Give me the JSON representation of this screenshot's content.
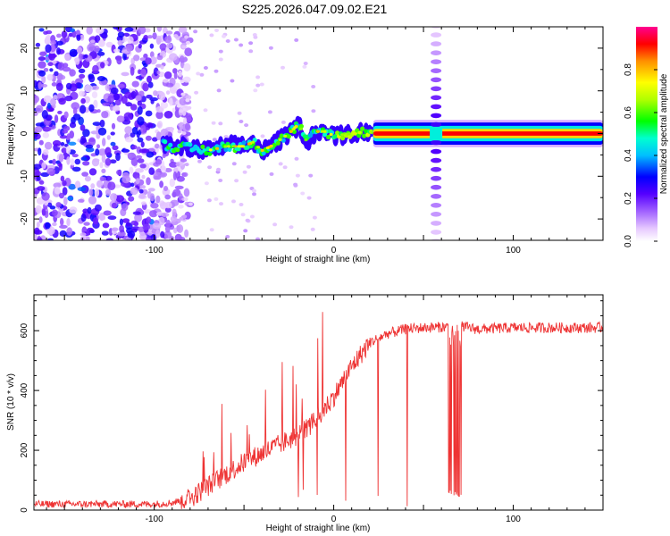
{
  "title": "S225.2026.047.09.02.E21",
  "chart_data": [
    {
      "type": "heatmap",
      "name": "spectrogram",
      "xlabel": "Height of straight line (km)",
      "ylabel": "Frequency (Hz)",
      "xlim": [
        -167,
        150
      ],
      "ylim": [
        -25,
        25
      ],
      "xticks": [
        -100,
        0,
        100
      ],
      "yticks": [
        -20,
        -10,
        0,
        10,
        20
      ],
      "colorbar": {
        "label": "Normalized spectral amplitude",
        "range": [
          0.0,
          1.0
        ],
        "ticks": [
          0.0,
          0.2,
          0.4,
          0.6,
          0.8
        ]
      },
      "ridge": {
        "description_points_x": [
          -95,
          -90,
          -80,
          -70,
          -60,
          -50,
          -45,
          -40,
          -35,
          -30,
          -25,
          -20,
          -18,
          -15,
          -10,
          -5,
          0,
          10,
          20,
          30,
          55,
          150
        ],
        "description_points_y": [
          -2.5,
          -3,
          -3.5,
          -4,
          -3,
          -3,
          -2,
          -4,
          -3,
          -1.5,
          0,
          2,
          1,
          -2,
          0.5,
          0.5,
          -0.5,
          0,
          0.5,
          0,
          0,
          0
        ]
      },
      "noise_region_x": [
        -167,
        -90
      ],
      "harmonic_column_x": 57
    },
    {
      "type": "line",
      "name": "snr",
      "xlabel": "Height of straight line (km)",
      "ylabel": "SNR (10 * v/v)",
      "xlim": [
        -167,
        150
      ],
      "ylim": [
        0,
        720
      ],
      "xticks": [
        -100,
        0,
        100
      ],
      "yticks": [
        0,
        200,
        400,
        600
      ],
      "color": "#ee3333",
      "envelope_x": [
        -167,
        -100,
        -90,
        -80,
        -70,
        -60,
        -50,
        -40,
        -30,
        -20,
        -10,
        0,
        10,
        20,
        30,
        40,
        50,
        60,
        70,
        80,
        100,
        150
      ],
      "envelope_y": [
        20,
        20,
        25,
        40,
        80,
        120,
        160,
        190,
        220,
        250,
        300,
        380,
        480,
        560,
        590,
        605,
        610,
        612,
        615,
        605,
        610,
        610
      ]
    }
  ]
}
